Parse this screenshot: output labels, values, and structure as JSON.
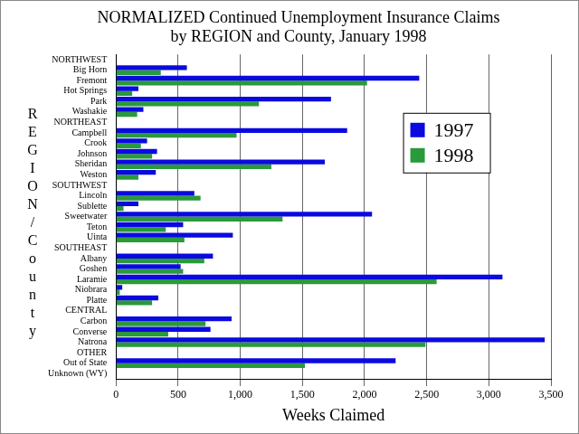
{
  "chart_data": {
    "type": "bar",
    "orientation": "horizontal",
    "title": [
      "NORMALIZED Continued Unemployment Insurance Claims",
      "by REGION and County, January 1998"
    ],
    "xlabel": "Weeks Claimed",
    "ylabel": "REGION/County",
    "categories": [
      "NORTHWEST",
      "Big Horn",
      "Fremont",
      "Hot Springs",
      "Park",
      "Washakie",
      "NORTHEAST",
      "Campbell",
      "Crook",
      "Johnson",
      "Sheridan",
      "Weston",
      "SOUTHWEST",
      "Lincoln",
      "Sublette",
      "Sweetwater",
      "Teton",
      "Uinta",
      "SOUTHEAST",
      "Albany",
      "Goshen",
      "Laramie",
      "Niobrara",
      "Platte",
      "CENTRAL",
      "Carbon",
      "Converse",
      "Natrona",
      "OTHER",
      "Out of State",
      "Unknown (WY)"
    ],
    "series": [
      {
        "name": "1997",
        "color": "#0a0ae0",
        "values": [
          null,
          570,
          2440,
          180,
          1730,
          220,
          null,
          1860,
          250,
          330,
          1680,
          320,
          null,
          630,
          180,
          2060,
          540,
          940,
          null,
          780,
          520,
          3110,
          50,
          340,
          null,
          930,
          760,
          3450,
          null,
          2250,
          null
        ]
      },
      {
        "name": "1998",
        "color": "#2a9a3a",
        "values": [
          null,
          360,
          2020,
          130,
          1150,
          170,
          null,
          970,
          200,
          290,
          1250,
          180,
          null,
          680,
          60,
          1340,
          400,
          550,
          null,
          710,
          540,
          2580,
          30,
          290,
          null,
          720,
          420,
          2490,
          null,
          1520,
          null
        ]
      }
    ],
    "xlim": [
      0,
      3500
    ],
    "xticks": [
      0,
      500,
      {
        "value": 1000,
        "label": "1,000"
      },
      {
        "value": 1500,
        "label": "1,500"
      },
      {
        "value": 2000,
        "label": "2,000"
      },
      {
        "value": 2500,
        "label": "2,500"
      },
      {
        "value": 3000,
        "label": "3,000"
      },
      {
        "value": 3500,
        "label": "3,500"
      }
    ],
    "grid": true,
    "legend": "upper right"
  }
}
